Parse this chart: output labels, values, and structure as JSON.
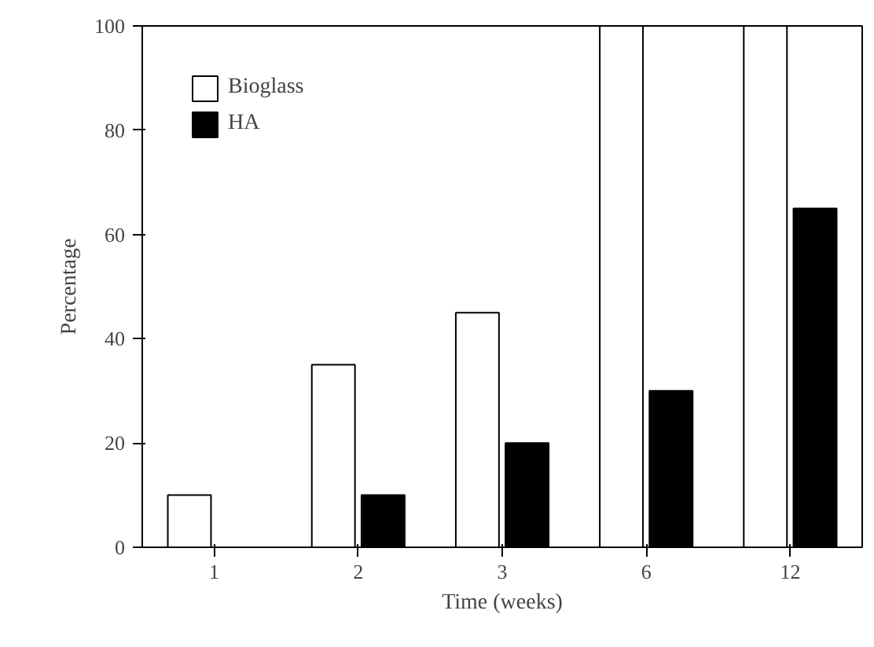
{
  "chart_data": {
    "type": "bar",
    "xlabel": "Time (weeks)",
    "ylabel": "Percentage",
    "categories": [
      "1",
      "2",
      "3",
      "6",
      "12"
    ],
    "series": [
      {
        "name": "Bioglass",
        "color": "#ffffff",
        "values": [
          10,
          35,
          45,
          100,
          100
        ]
      },
      {
        "name": "HA",
        "color": "#000000",
        "values": [
          0,
          10,
          20,
          30,
          65
        ]
      }
    ],
    "ylim": [
      0,
      100
    ],
    "yticks": [
      0,
      20,
      40,
      60,
      80,
      100
    ],
    "grid": false,
    "legend": "top left"
  }
}
